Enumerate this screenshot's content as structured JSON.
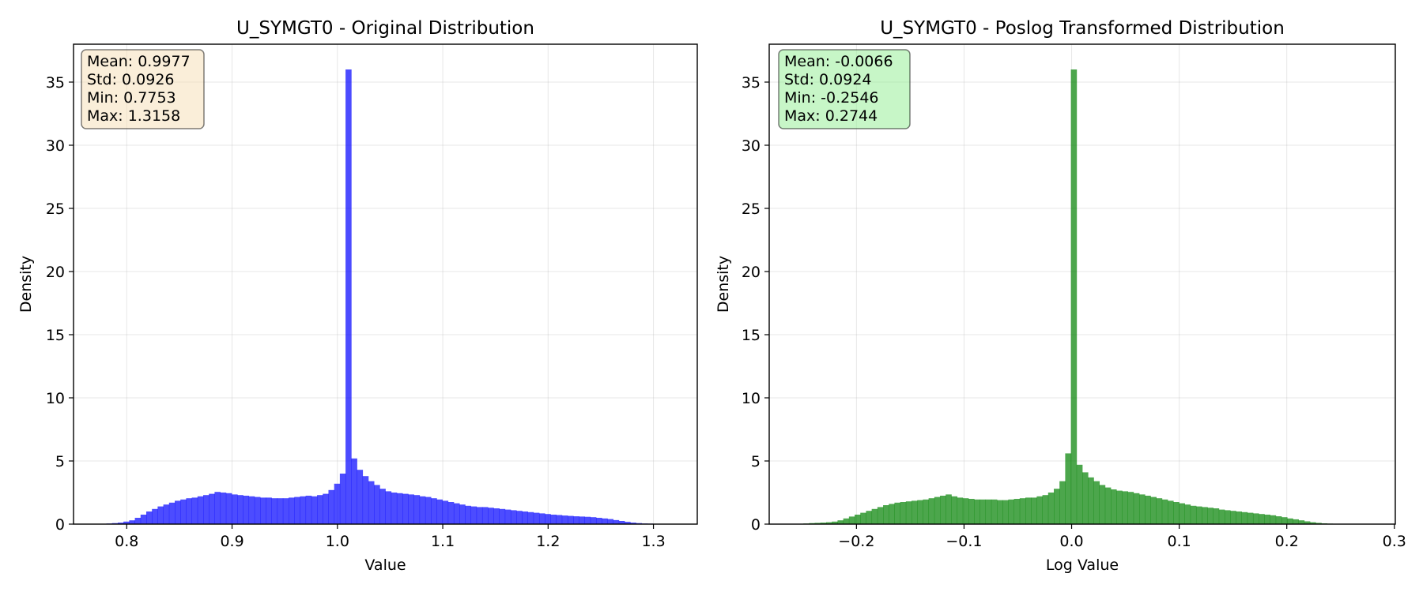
{
  "chart_data": [
    {
      "type": "bar",
      "title": "U_SYMGT0 - Original Distribution",
      "xlabel": "Value",
      "ylabel": "Density",
      "xlim": [
        0.7495,
        1.3416
      ],
      "ylim": [
        0,
        38
      ],
      "xticks": [
        0.8,
        0.9,
        1.0,
        1.1,
        1.2,
        1.3
      ],
      "xtick_labels": [
        "0.8",
        "0.9",
        "1.0",
        "1.1",
        "1.2",
        "1.3"
      ],
      "yticks": [
        0,
        5,
        10,
        15,
        20,
        25,
        30,
        35
      ],
      "ytick_labels": [
        "0",
        "5",
        "10",
        "15",
        "20",
        "25",
        "30",
        "35"
      ],
      "grid": true,
      "bar_color": "#0000ff",
      "bar_opacity": 0.7,
      "bin_start": 0.7753,
      "bin_width": 0.005405,
      "values": [
        0.03,
        0.05,
        0.08,
        0.12,
        0.2,
        0.3,
        0.5,
        0.75,
        1.0,
        1.2,
        1.4,
        1.55,
        1.7,
        1.85,
        1.95,
        2.05,
        2.1,
        2.2,
        2.3,
        2.4,
        2.55,
        2.5,
        2.45,
        2.35,
        2.3,
        2.25,
        2.2,
        2.15,
        2.1,
        2.1,
        2.05,
        2.05,
        2.05,
        2.1,
        2.15,
        2.2,
        2.25,
        2.2,
        2.3,
        2.4,
        2.7,
        3.2,
        4.0,
        36.0,
        5.2,
        4.3,
        3.8,
        3.4,
        3.1,
        2.8,
        2.6,
        2.5,
        2.45,
        2.4,
        2.35,
        2.3,
        2.2,
        2.15,
        2.05,
        1.95,
        1.85,
        1.75,
        1.65,
        1.55,
        1.45,
        1.4,
        1.35,
        1.35,
        1.3,
        1.25,
        1.2,
        1.15,
        1.1,
        1.05,
        1.0,
        0.95,
        0.9,
        0.85,
        0.8,
        0.75,
        0.72,
        0.68,
        0.65,
        0.62,
        0.6,
        0.58,
        0.55,
        0.5,
        0.45,
        0.4,
        0.32,
        0.25,
        0.18,
        0.12,
        0.08,
        0.05,
        0.04,
        0.03,
        0.02,
        0.01
      ],
      "stats_box": {
        "lines": [
          "Mean: 0.9977",
          "Std: 0.0926",
          "Min: 0.7753",
          "Max: 1.3158"
        ],
        "facecolor": "#f5deb3"
      }
    },
    {
      "type": "bar",
      "title": "U_SYMGT0 - Poslog Transformed Distribution",
      "xlabel": "Log Value",
      "ylabel": "Density",
      "xlim": [
        -0.2811,
        0.3009
      ],
      "ylim": [
        0,
        38
      ],
      "xticks": [
        -0.2,
        -0.1,
        0.0,
        0.1,
        0.2,
        0.3
      ],
      "xtick_labels": [
        "−0.2",
        "−0.1",
        "0.0",
        "0.1",
        "0.2",
        "0.3"
      ],
      "yticks": [
        0,
        5,
        10,
        15,
        20,
        25,
        30,
        35
      ],
      "ytick_labels": [
        "0",
        "5",
        "10",
        "15",
        "20",
        "25",
        "30",
        "35"
      ],
      "grid": true,
      "bar_color": "#008000",
      "bar_opacity": 0.7,
      "bin_start": -0.2546,
      "bin_width": 0.00529,
      "values": [
        0.03,
        0.05,
        0.08,
        0.1,
        0.12,
        0.15,
        0.2,
        0.3,
        0.45,
        0.6,
        0.75,
        0.9,
        1.05,
        1.2,
        1.35,
        1.5,
        1.6,
        1.7,
        1.75,
        1.8,
        1.85,
        1.9,
        1.95,
        2.05,
        2.15,
        2.25,
        2.35,
        2.2,
        2.1,
        2.05,
        2.0,
        1.95,
        1.95,
        1.95,
        1.95,
        1.9,
        1.9,
        1.95,
        2.0,
        2.05,
        2.1,
        2.1,
        2.2,
        2.3,
        2.5,
        2.8,
        3.4,
        5.6,
        36.0,
        4.7,
        4.1,
        3.7,
        3.4,
        3.1,
        2.9,
        2.75,
        2.65,
        2.6,
        2.55,
        2.45,
        2.35,
        2.25,
        2.15,
        2.05,
        1.95,
        1.85,
        1.75,
        1.65,
        1.55,
        1.45,
        1.4,
        1.35,
        1.3,
        1.25,
        1.15,
        1.1,
        1.05,
        1.0,
        0.95,
        0.9,
        0.85,
        0.8,
        0.75,
        0.7,
        0.62,
        0.55,
        0.45,
        0.38,
        0.3,
        0.22,
        0.15,
        0.1,
        0.06,
        0.04,
        0.03,
        0.02,
        0.01,
        0.01,
        0.01,
        0.0
      ],
      "stats_box": {
        "lines": [
          "Mean: -0.0066",
          "Std: 0.0924",
          "Min: -0.2546",
          "Max: 0.2744"
        ],
        "facecolor": "#90ee90"
      }
    }
  ]
}
